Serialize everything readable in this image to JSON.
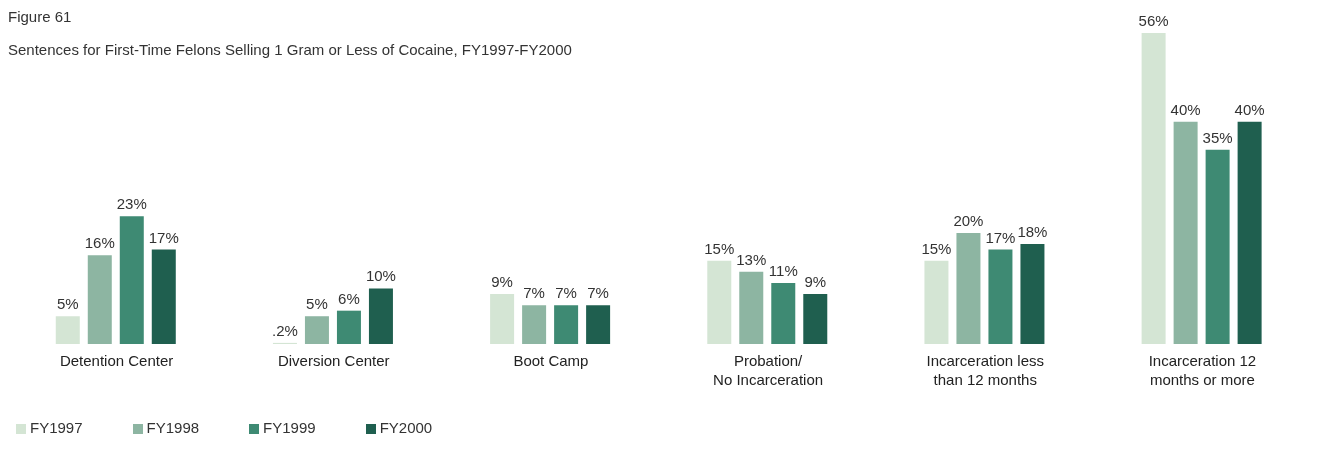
{
  "chart_data": {
    "type": "bar",
    "title": "Figure 61",
    "subtitle": "Sentences for First-Time Felons Selling 1 Gram or Less of Cocaine, FY1997-FY2000",
    "categories": [
      "Detention Center",
      "Diversion Center",
      "Boot Camp",
      "Probation/\nNo Incarceration",
      "Incarceration less\nthan 12 months",
      "Incarceration 12\nmonths or more"
    ],
    "series": [
      {
        "name": "FY1997",
        "color": "#d4e5d4",
        "values": [
          5,
          0.2,
          9,
          15,
          15,
          56
        ],
        "value_labels": [
          "5%",
          ".2%",
          "9%",
          "15%",
          "15%",
          "56%"
        ]
      },
      {
        "name": "FY1998",
        "color": "#8db5a2",
        "values": [
          16,
          5,
          7,
          13,
          20,
          40
        ],
        "value_labels": [
          "16%",
          "5%",
          "7%",
          "13%",
          "20%",
          "40%"
        ]
      },
      {
        "name": "FY1999",
        "color": "#3e8a73",
        "values": [
          23,
          6,
          7,
          11,
          17,
          35
        ],
        "value_labels": [
          "23%",
          "6%",
          "7%",
          "11%",
          "17%",
          "35%"
        ]
      },
      {
        "name": "FY2000",
        "color": "#1f5f4f",
        "values": [
          17,
          10,
          7,
          9,
          18,
          40
        ],
        "value_labels": [
          "17%",
          "10%",
          "7%",
          "9%",
          "18%",
          "40%"
        ]
      }
    ],
    "legend": "bottom left",
    "grid": false
  }
}
